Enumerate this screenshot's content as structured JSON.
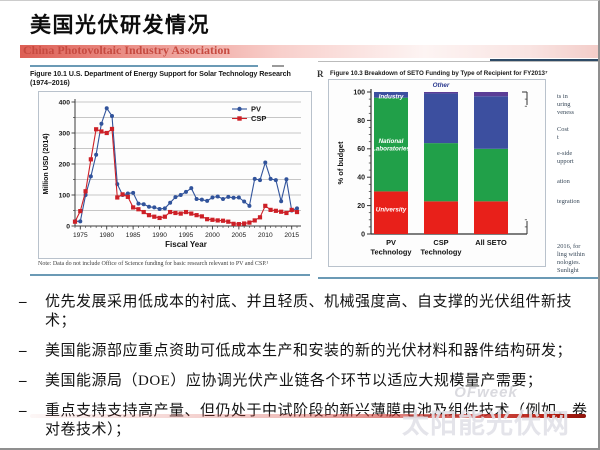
{
  "header": {
    "title": "美国光伏研发情况",
    "band_text": "China Photovoltaic Industry Association"
  },
  "colors": {
    "accent_red": "#c64a40",
    "rule_blue": "#6b9ab5",
    "pv_blue": "#31539b",
    "csp_red": "#cd2027",
    "bar_university_red": "#e8201a",
    "bar_natlab_green": "#21a049",
    "bar_industry_blue": "#3c4f9f",
    "bar_other_purple": "#5b3d96"
  },
  "left_figure": {
    "caption": "Figure 10.1  U.S. Department of Energy Support for Solar Technology Research (1974–2016)",
    "note": "Note: Data do not include Office of Science funding for basic research relevant to PV and CSP.¹"
  },
  "right_figure": {
    "caption": "Figure 10.3  Breakdown of SETO Funding by Type of Recipient for FY2013⁷",
    "page_edge_fragment": "R",
    "margin_fragments": [
      {
        "t": "ts in",
        "mt": 0
      },
      {
        "t": "uring",
        "mt": 0
      },
      {
        "t": "veness",
        "mt": 0
      },
      {
        "t": "Cost",
        "mt": 9
      },
      {
        "t": "t",
        "mt": 0
      },
      {
        "t": "e-side",
        "mt": 8
      },
      {
        "t": "upport",
        "mt": 0
      },
      {
        "t": "ation",
        "mt": 12
      },
      {
        "t": "tegration",
        "mt": 12
      },
      {
        "t": "2016, for",
        "mt": 37
      },
      {
        "t": "ling within",
        "mt": 0
      },
      {
        "t": "nologies.",
        "mt": 0
      },
      {
        "t": "Sunlight",
        "mt": 0
      }
    ]
  },
  "bullet_dash": "–",
  "bullets": [
    "优先发展采用低成本的衬底、并且轻质、机械强度高、自支撑的光伏组件新技术；",
    "美国能源部应重点资助可低成本生产和安装的新的光伏材料和器件结构研发；",
    "美国能源局（DOE）应协调光伏产业链各个环节以适应大规模量产需要；",
    "重点支持支持高产量、但仍处于中试阶段的新兴薄膜电池及组件技术（例如，卷对卷技术）；"
  ],
  "watermark": {
    "line1": "OFweek",
    "line2": "太阳能光伏网"
  },
  "chart_data": [
    {
      "type": "line",
      "title": "U.S. Department of Energy Support for Solar Technology Research (1974–2016)",
      "xlabel": "Fiscal Year",
      "ylabel": "Million USD (2014)",
      "x_start": 1974,
      "x_end": 2016,
      "ylim": [
        0,
        400
      ],
      "grid_step": 50,
      "grid": true,
      "legend_position": "top-right",
      "x_major_ticks": [
        1975,
        1980,
        1985,
        1990,
        1995,
        2000,
        2005,
        2010,
        2015
      ],
      "y_major_ticks": [
        0,
        100,
        200,
        300,
        400
      ],
      "series": [
        {
          "name": "PV",
          "color": "#31539b",
          "marker": "circle",
          "values": [
            15,
            15,
            100,
            160,
            230,
            330,
            380,
            355,
            135,
            100,
            105,
            107,
            72,
            70,
            62,
            60,
            55,
            57,
            75,
            93,
            100,
            110,
            122,
            87,
            85,
            81,
            92,
            95,
            87,
            94,
            91,
            92,
            79,
            65,
            152,
            148,
            205,
            152,
            148,
            80,
            151,
            50,
            57
          ]
        },
        {
          "name": "CSP",
          "color": "#cd2027",
          "marker": "square",
          "values": [
            14,
            48,
            112,
            215,
            312,
            305,
            300,
            313,
            92,
            102,
            94,
            60,
            54,
            45,
            35,
            30,
            26,
            30,
            45,
            42,
            40,
            45,
            40,
            35,
            31,
            22,
            20,
            18,
            17,
            14,
            7,
            6,
            8,
            11,
            18,
            28,
            65,
            52,
            49,
            46,
            42,
            52,
            45
          ]
        }
      ]
    },
    {
      "type": "stacked-bar",
      "title": "Breakdown of SETO Funding by Type of Recipient for FY2013",
      "ylabel": "% of budget",
      "ylim": [
        0,
        100
      ],
      "y_major_ticks": [
        0,
        20,
        40,
        60,
        80,
        100
      ],
      "categories": [
        [
          "PV",
          "Technology"
        ],
        [
          "CSP",
          "Technology"
        ],
        [
          "All SETO"
        ]
      ],
      "series": [
        {
          "name": "University",
          "color": "#e8201a",
          "values": [
            30,
            23,
            23
          ]
        },
        {
          "name": "National Laboratories",
          "color": "#21a049",
          "values": [
            66,
            41,
            37
          ]
        },
        {
          "name": "Industry",
          "color": "#3c4f9f",
          "values": [
            4,
            35,
            37
          ]
        },
        {
          "name": "Other",
          "color": "#5b3d96",
          "values": [
            0,
            1,
            3
          ]
        }
      ],
      "segment_labels": [
        {
          "bar": 0,
          "lines": [
            "Industry"
          ],
          "y": 95.5,
          "color": "#ffffff"
        },
        {
          "bar": 0,
          "lines": [
            "National",
            "Laboratories"
          ],
          "y": 64,
          "color": "#ffffff"
        },
        {
          "bar": 0,
          "lines": [
            "University"
          ],
          "y": 16,
          "color": "#ffffff"
        },
        {
          "bar": 1,
          "lines": [
            "Other"
          ],
          "y": 103.5,
          "color": "#2b3a8f"
        }
      ]
    }
  ]
}
